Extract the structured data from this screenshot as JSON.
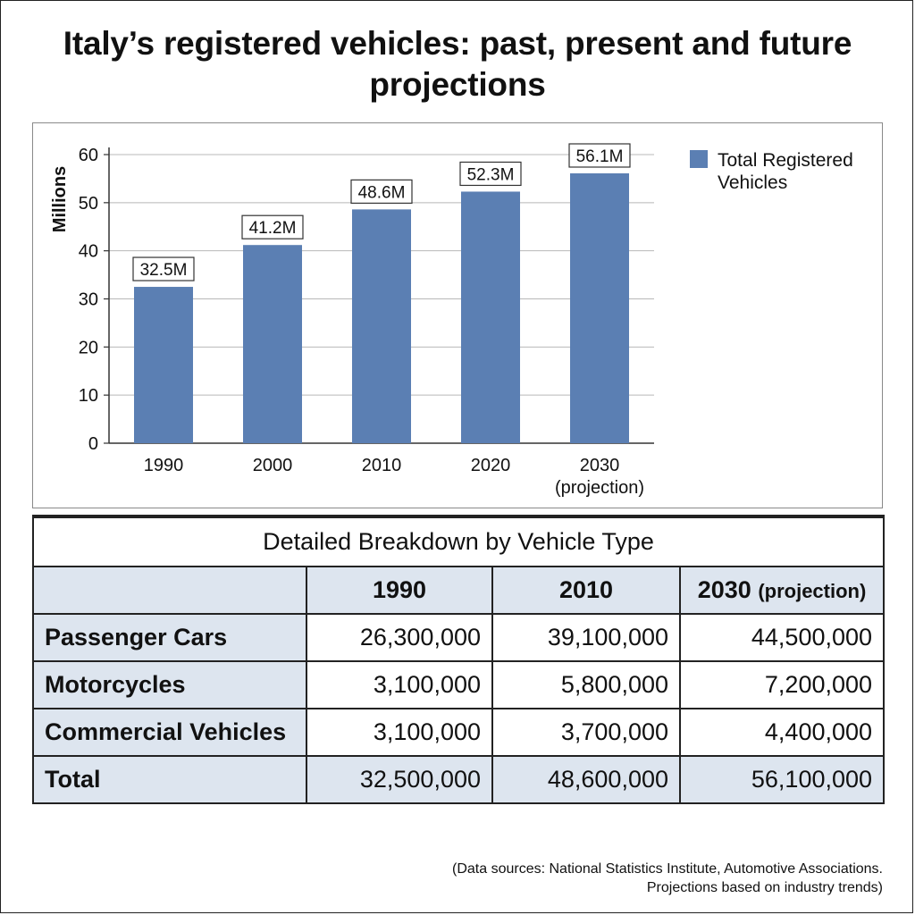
{
  "title": "Italy’s registered vehicles: past, present and future projections",
  "chart_data": {
    "type": "bar",
    "categories": [
      "1990",
      "2000",
      "2010",
      "2020",
      "2030"
    ],
    "category_sublabels": [
      "",
      "",
      "",
      "",
      "(projection)"
    ],
    "series": [
      {
        "name": "Total Registered Vehicles",
        "values": [
          32.5,
          41.2,
          48.6,
          52.3,
          56.1
        ]
      }
    ],
    "data_labels": [
      "32.5M",
      "41.2M",
      "48.6M",
      "52.3M",
      "56.1M"
    ],
    "ylabel": "Millions",
    "xlabel": "",
    "ylim": [
      0,
      60
    ],
    "yticks": [
      0,
      10,
      20,
      30,
      40,
      50,
      60
    ],
    "grid": true,
    "legend": "top-right",
    "bar_color": "#5b7fb3"
  },
  "legend": {
    "label_line1": "Total Registered",
    "label_line2": "Vehicles"
  },
  "table": {
    "caption": "Detailed Breakdown by Vehicle Type",
    "columns": [
      {
        "label": "1990",
        "sub": ""
      },
      {
        "label": "2010",
        "sub": ""
      },
      {
        "label": "2030",
        "sub": "(projection)"
      }
    ],
    "rows": [
      {
        "label": "Passenger Cars",
        "values": [
          "26,300,000",
          "39,100,000",
          "44,500,000"
        ]
      },
      {
        "label": "Motorcycles",
        "values": [
          "3,100,000",
          "5,800,000",
          "7,200,000"
        ]
      },
      {
        "label": "Commercial Vehicles",
        "values": [
          "3,100,000",
          "3,700,000",
          "4,400,000"
        ]
      },
      {
        "label": "Total",
        "values": [
          "32,500,000",
          "48,600,000",
          "56,100,000"
        ]
      }
    ]
  },
  "source": {
    "line1": "(Data sources: National Statistics Institute, Automotive Associations.",
    "line2": "Projections based on industry trends)"
  }
}
